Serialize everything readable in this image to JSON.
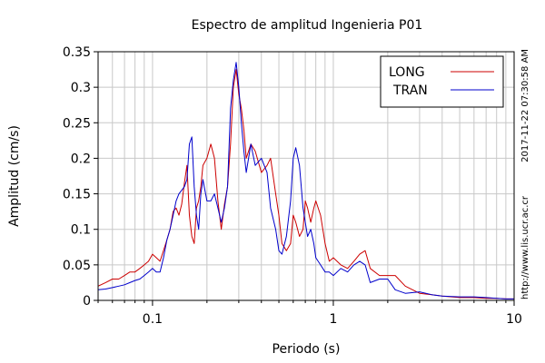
{
  "chart_data": {
    "type": "line",
    "title": "Espectro de amplitud Ingenieria P01",
    "xlabel": "Periodo (s)",
    "ylabel": "Amplitud (cm/s)",
    "x_scale": "log",
    "xlim": [
      0.05,
      10
    ],
    "ylim": [
      0,
      0.35
    ],
    "x_ticks": [
      0.1,
      1,
      10
    ],
    "x_tick_labels": [
      "0.1",
      "1",
      "10"
    ],
    "y_ticks": [
      0,
      0.05,
      0.1,
      0.15,
      0.2,
      0.25,
      0.3,
      0.35
    ],
    "y_tick_labels": [
      "0",
      "0.05",
      "0.1",
      "0.15",
      "0.2",
      "0.25",
      "0.3",
      "0.35"
    ],
    "grid": true,
    "legend_position": "top-right",
    "side_text": {
      "timestamp": "2017-11-22 07:30:58 AM",
      "url": "http://www.lis.ucr.ac.cr"
    },
    "series": [
      {
        "name": "LONG",
        "color": "#cc0000",
        "x": [
          0.05,
          0.055,
          0.06,
          0.065,
          0.07,
          0.075,
          0.08,
          0.085,
          0.09,
          0.095,
          0.1,
          0.105,
          0.11,
          0.115,
          0.12,
          0.125,
          0.13,
          0.135,
          0.14,
          0.145,
          0.15,
          0.155,
          0.16,
          0.165,
          0.17,
          0.175,
          0.18,
          0.185,
          0.19,
          0.2,
          0.21,
          0.22,
          0.23,
          0.24,
          0.25,
          0.26,
          0.27,
          0.28,
          0.29,
          0.3,
          0.31,
          0.32,
          0.33,
          0.35,
          0.37,
          0.4,
          0.43,
          0.45,
          0.48,
          0.5,
          0.52,
          0.55,
          0.58,
          0.6,
          0.62,
          0.65,
          0.68,
          0.7,
          0.72,
          0.75,
          0.78,
          0.8,
          0.85,
          0.9,
          0.95,
          1.0,
          1.1,
          1.2,
          1.3,
          1.4,
          1.5,
          1.6,
          1.8,
          2.0,
          2.2,
          2.5,
          3.0,
          3.5,
          4.0,
          5.0,
          6.0,
          7.0,
          8.0,
          9.0,
          10.0
        ],
        "values": [
          0.02,
          0.025,
          0.03,
          0.03,
          0.035,
          0.04,
          0.04,
          0.045,
          0.05,
          0.055,
          0.065,
          0.06,
          0.055,
          0.07,
          0.085,
          0.1,
          0.125,
          0.13,
          0.12,
          0.135,
          0.165,
          0.19,
          0.12,
          0.09,
          0.08,
          0.13,
          0.14,
          0.16,
          0.19,
          0.2,
          0.22,
          0.2,
          0.14,
          0.1,
          0.135,
          0.16,
          0.22,
          0.3,
          0.325,
          0.29,
          0.27,
          0.24,
          0.2,
          0.22,
          0.21,
          0.18,
          0.19,
          0.2,
          0.15,
          0.12,
          0.08,
          0.07,
          0.08,
          0.12,
          0.11,
          0.09,
          0.1,
          0.14,
          0.13,
          0.11,
          0.13,
          0.14,
          0.12,
          0.08,
          0.055,
          0.06,
          0.05,
          0.045,
          0.055,
          0.065,
          0.07,
          0.045,
          0.035,
          0.035,
          0.035,
          0.02,
          0.01,
          0.008,
          0.006,
          0.004,
          0.004,
          0.003,
          0.003,
          0.002,
          0.002
        ]
      },
      {
        "name": "TRAN",
        "color": "#0000cc",
        "x": [
          0.05,
          0.055,
          0.06,
          0.065,
          0.07,
          0.075,
          0.08,
          0.085,
          0.09,
          0.095,
          0.1,
          0.105,
          0.11,
          0.115,
          0.12,
          0.125,
          0.13,
          0.135,
          0.14,
          0.145,
          0.15,
          0.155,
          0.16,
          0.165,
          0.17,
          0.175,
          0.18,
          0.185,
          0.19,
          0.2,
          0.21,
          0.22,
          0.23,
          0.24,
          0.25,
          0.26,
          0.27,
          0.28,
          0.29,
          0.3,
          0.31,
          0.32,
          0.33,
          0.35,
          0.37,
          0.4,
          0.43,
          0.45,
          0.48,
          0.5,
          0.52,
          0.55,
          0.58,
          0.6,
          0.62,
          0.65,
          0.68,
          0.7,
          0.72,
          0.75,
          0.78,
          0.8,
          0.85,
          0.9,
          0.95,
          1.0,
          1.1,
          1.2,
          1.3,
          1.4,
          1.5,
          1.6,
          1.8,
          2.0,
          2.2,
          2.5,
          3.0,
          3.5,
          4.0,
          5.0,
          6.0,
          7.0,
          8.0,
          9.0,
          10.0
        ],
        "values": [
          0.015,
          0.016,
          0.018,
          0.02,
          0.022,
          0.025,
          0.028,
          0.03,
          0.035,
          0.04,
          0.045,
          0.04,
          0.04,
          0.06,
          0.085,
          0.1,
          0.12,
          0.14,
          0.15,
          0.155,
          0.16,
          0.17,
          0.22,
          0.23,
          0.16,
          0.12,
          0.1,
          0.15,
          0.17,
          0.14,
          0.14,
          0.15,
          0.13,
          0.11,
          0.13,
          0.16,
          0.27,
          0.31,
          0.335,
          0.3,
          0.25,
          0.21,
          0.18,
          0.22,
          0.19,
          0.2,
          0.18,
          0.13,
          0.1,
          0.07,
          0.065,
          0.09,
          0.14,
          0.2,
          0.215,
          0.19,
          0.13,
          0.11,
          0.09,
          0.1,
          0.08,
          0.06,
          0.05,
          0.04,
          0.04,
          0.035,
          0.045,
          0.04,
          0.05,
          0.055,
          0.05,
          0.025,
          0.03,
          0.03,
          0.015,
          0.01,
          0.012,
          0.008,
          0.006,
          0.005,
          0.005,
          0.004,
          0.003,
          0.002,
          0.002
        ]
      }
    ]
  }
}
